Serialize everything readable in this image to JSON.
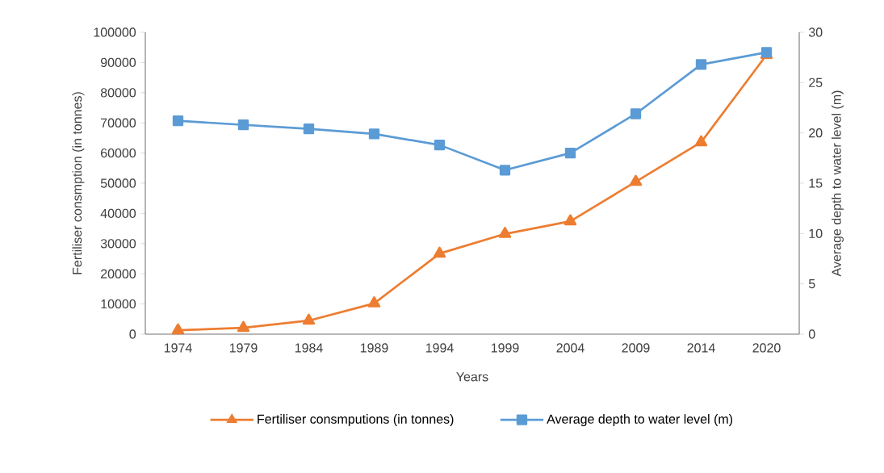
{
  "chart_data": {
    "type": "line",
    "xlabel": "Years",
    "ylabel": "Fertiliser consmption (in tonnes)",
    "y2label": "Average depth to water level (m)",
    "categories": [
      "1974",
      "1979",
      "1984",
      "1989",
      "1994",
      "1999",
      "2004",
      "2009",
      "2014",
      "2020"
    ],
    "series": [
      {
        "name": "Fertiliser consmputions (in tonnes)",
        "color": "#ed7d31",
        "marker": "triangle",
        "values": [
          1300,
          2100,
          4500,
          10200,
          26700,
          33200,
          37400,
          50500,
          63600,
          92500
        ]
      },
      {
        "name": "Average depth to water level (m)",
        "color": "#5b9bd5",
        "marker": "square",
        "axis": "y2",
        "values": [
          21.2,
          20.8,
          20.4,
          19.9,
          18.8,
          16.3,
          18.0,
          21.9,
          26.8,
          28.0
        ]
      }
    ],
    "ylim": [
      0,
      100000
    ],
    "yticks": [
      0,
      10000,
      20000,
      30000,
      40000,
      50000,
      60000,
      70000,
      80000,
      90000,
      100000
    ],
    "y2lim": [
      0,
      30
    ],
    "y2ticks": [
      0,
      5,
      10,
      15,
      20,
      25,
      30
    ],
    "grid": false,
    "legend": "bottom",
    "line_style": "solid"
  }
}
